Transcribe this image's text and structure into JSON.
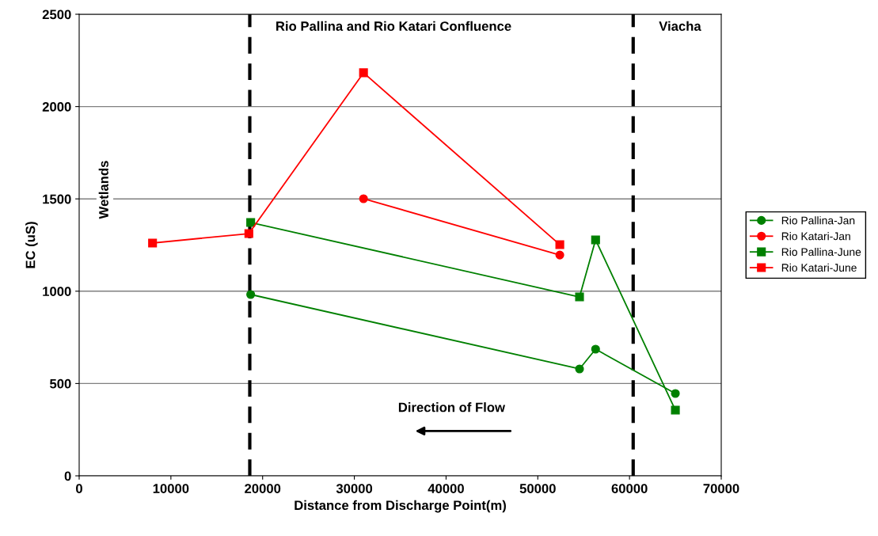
{
  "chart_data": {
    "type": "line",
    "xlabel": "Distance from Discharge Point(m)",
    "ylabel": "EC (uS)",
    "xlim": [
      0,
      70000
    ],
    "xticks": [
      0,
      10000,
      20000,
      30000,
      40000,
      50000,
      60000,
      70000
    ],
    "ylim": [
      0,
      2500
    ],
    "yticks": [
      0,
      500,
      1000,
      1500,
      2000,
      2500
    ],
    "grid": "y",
    "legend": "right",
    "line_style": "solid",
    "series": [
      {
        "name": "Rio Pallina-Jan",
        "color": "#008000",
        "marker": "circle",
        "x": [
          18700,
          54550,
          56300,
          65000
        ],
        "values": [
          982,
          579,
          686,
          446
        ]
      },
      {
        "name": "Rio Katari-Jan",
        "color": "#ff0000",
        "marker": "circle",
        "x": [
          31000,
          52400
        ],
        "values": [
          1501,
          1196
        ]
      },
      {
        "name": "Rio Pallina-June",
        "color": "#008000",
        "marker": "square",
        "x": [
          18700,
          54550,
          56300,
          65000
        ],
        "values": [
          1372,
          969,
          1278,
          356
        ]
      },
      {
        "name": "Rio Katari-June",
        "color": "#ff0000",
        "marker": "square",
        "x": [
          8000,
          18500,
          31000,
          52400
        ],
        "values": [
          1261,
          1312,
          2183,
          1252
        ]
      }
    ],
    "ref_lines": [
      {
        "axis": "x",
        "value": 18600,
        "label": "Rio Pallina and Rio Katari Confluence",
        "color": "#000000",
        "line_style": "dashed"
      },
      {
        "axis": "x",
        "value": 60400,
        "label": "Viacha",
        "color": "#000000",
        "line_style": "dashed"
      }
    ],
    "annotations": [
      "Wetlands",
      "Direction of Flow"
    ]
  }
}
